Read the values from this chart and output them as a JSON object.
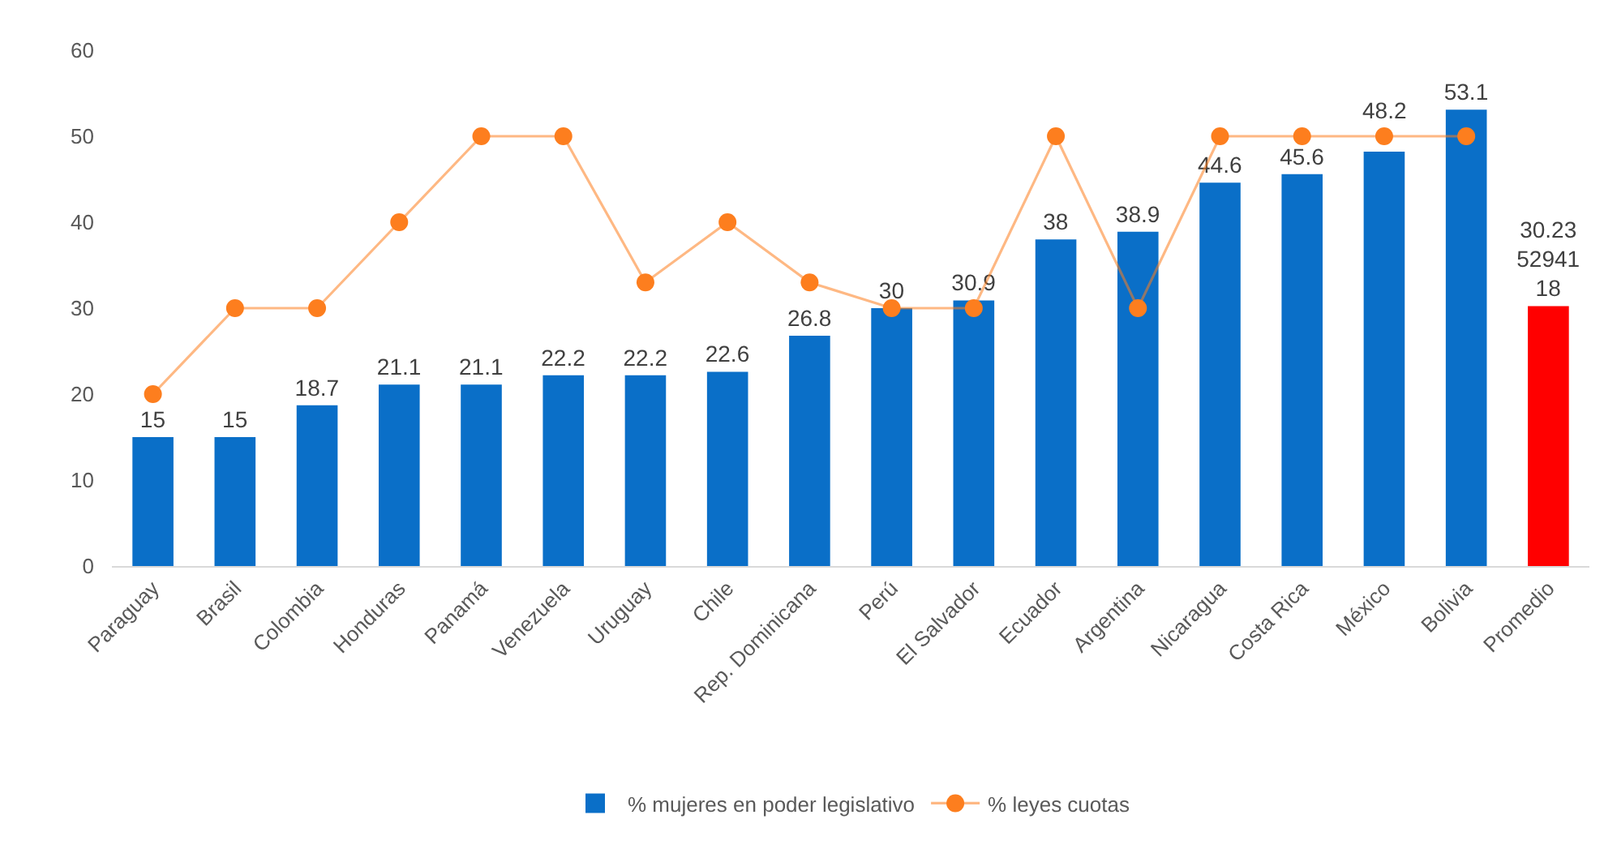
{
  "chart_data": {
    "type": "bar",
    "categories": [
      "Paraguay",
      "Brasil",
      "Colombia",
      "Honduras",
      "Panamá",
      "Venezuela",
      "Uruguay",
      "Chile",
      "Rep. Dominicana",
      "Perú",
      "El Salvador",
      "Ecuador",
      "Argentina",
      "Nicaragua",
      "Costa Rica",
      "México",
      "Bolivia",
      "Promedio"
    ],
    "series": [
      {
        "name": "% mujeres en poder legislativo",
        "data_labels": true,
        "colors": [
          "#0a6fc8",
          "#0a6fc8",
          "#0a6fc8",
          "#0a6fc8",
          "#0a6fc8",
          "#0a6fc8",
          "#0a6fc8",
          "#0a6fc8",
          "#0a6fc8",
          "#0a6fc8",
          "#0a6fc8",
          "#0a6fc8",
          "#0a6fc8",
          "#0a6fc8",
          "#0a6fc8",
          "#0a6fc8",
          "#0a6fc8",
          "#ff0000"
        ],
        "values": [
          15,
          15,
          18.7,
          21.1,
          21.1,
          22.2,
          22.2,
          22.6,
          26.8,
          30,
          30.9,
          38,
          38.9,
          44.6,
          45.6,
          48.2,
          53.1,
          30.235294118
        ]
      },
      {
        "name": "% leyes cuotas",
        "type": "line",
        "color": "#fd7e1e",
        "marker": "circle",
        "line_style": "solid",
        "values": [
          20,
          30,
          30,
          40,
          50,
          50,
          33,
          40,
          33,
          30,
          30,
          50,
          30,
          50,
          50,
          50,
          50,
          null
        ]
      }
    ],
    "ylim": [
      0,
      60
    ],
    "yticks": [
      0,
      10,
      20,
      30,
      40,
      50,
      60
    ],
    "legend": "bottom"
  }
}
